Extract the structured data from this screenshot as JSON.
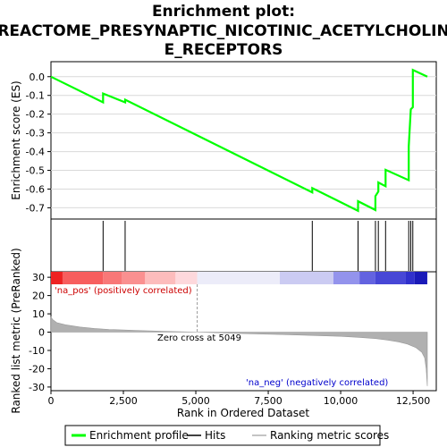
{
  "chart_data": {
    "type": "line",
    "title_lines": [
      "Enrichment plot:",
      "REACTOME_PRESYNAPTIC_NICOTINIC_ACETYLCHOLIN",
      "E_RECEPTORS"
    ],
    "top_panel": {
      "ylabel": "Enrichment score (ES)",
      "ylim": [
        -0.76,
        0.08
      ],
      "yticks": [
        0.0,
        -0.1,
        -0.2,
        -0.3,
        -0.4,
        -0.5,
        -0.6,
        -0.7
      ],
      "ytick_labels": [
        "0.0",
        "-0.1",
        "-0.2",
        "-0.3",
        "-0.4",
        "-0.5",
        "-0.6",
        "-0.7"
      ],
      "series": [
        {
          "name": "Enrichment profile",
          "color": "#00ff00",
          "x": [
            0,
            1800,
            1800,
            2560,
            2560,
            9020,
            9020,
            10600,
            10600,
            11200,
            11200,
            11300,
            11300,
            11550,
            11550,
            12350,
            12350,
            12420,
            12420,
            12490,
            12490,
            12990
          ],
          "y": [
            0.0,
            -0.137,
            -0.09,
            -0.137,
            -0.123,
            -0.618,
            -0.595,
            -0.716,
            -0.665,
            -0.712,
            -0.638,
            -0.613,
            -0.565,
            -0.585,
            -0.497,
            -0.553,
            -0.373,
            -0.174,
            -0.174,
            -0.163,
            0.036,
            0.0
          ]
        }
      ]
    },
    "hits": {
      "name": "Hits",
      "x": [
        1800,
        2560,
        9020,
        10600,
        11200,
        11300,
        11550,
        12350,
        12420,
        12490
      ]
    },
    "bottom_panel": {
      "ylabel": "Ranked list metric (PreRanked)",
      "xlabel": "Rank in Ordered Dataset",
      "ylim": [
        -32,
        33
      ],
      "yticks": [
        30,
        20,
        10,
        0,
        -10,
        -20,
        -30
      ],
      "ytick_labels": [
        "30",
        "20",
        "10",
        "0",
        "-10",
        "-20",
        "-30"
      ],
      "series": [
        {
          "name": "Ranking metric scores",
          "color": "#b0b0b0",
          "x": [
            0,
            50,
            200,
            500,
            1000,
            1500,
            2000,
            3000,
            4000,
            5049,
            6000,
            7000,
            8000,
            9000,
            10000,
            10600,
            11200,
            11600,
            12000,
            12300,
            12600,
            12800,
            12900,
            12950,
            12990
          ],
          "y": [
            8.5,
            7.0,
            5.2,
            4.0,
            2.8,
            2.0,
            1.5,
            0.9,
            0.4,
            0.0,
            -0.5,
            -0.9,
            -1.3,
            -1.8,
            -2.3,
            -2.8,
            -3.5,
            -4.3,
            -5.3,
            -6.5,
            -8.5,
            -11.0,
            -14.0,
            -20.0,
            -29.5
          ]
        }
      ],
      "annotations": {
        "pos_label": "'na_pos' (positively correlated)",
        "neg_label": "'na_neg' (negatively correlated)",
        "zero_cross": "Zero cross at 5049",
        "zero_cross_x": 5049
      }
    },
    "xaxis": {
      "xlim": [
        0,
        13300
      ],
      "xticks": [
        0,
        2500,
        5000,
        7500,
        10000,
        12500
      ],
      "xtick_labels": [
        "0",
        "2,500",
        "5,000",
        "7,500",
        "10,000",
        "12,500"
      ]
    },
    "heatmap_bar": {
      "segments": [
        {
          "x0": 0,
          "x1": 400,
          "color": "#ee2222"
        },
        {
          "x0": 400,
          "x1": 1800,
          "color": "#f75e5e"
        },
        {
          "x0": 1800,
          "x1": 2450,
          "color": "#f87878"
        },
        {
          "x0": 2450,
          "x1": 3250,
          "color": "#fa9090"
        },
        {
          "x0": 3250,
          "x1": 4300,
          "color": "#fcbcbc"
        },
        {
          "x0": 4300,
          "x1": 5049,
          "color": "#fdd8dc"
        },
        {
          "x0": 5049,
          "x1": 7900,
          "color": "#ececf9"
        },
        {
          "x0": 7900,
          "x1": 9750,
          "color": "#cbcbf2"
        },
        {
          "x0": 9750,
          "x1": 10650,
          "color": "#9393ec"
        },
        {
          "x0": 10650,
          "x1": 11200,
          "color": "#6363e0"
        },
        {
          "x0": 11200,
          "x1": 12250,
          "color": "#4747d6"
        },
        {
          "x0": 12250,
          "x1": 12550,
          "color": "#3030cc"
        },
        {
          "x0": 12550,
          "x1": 12990,
          "color": "#1a1ab8"
        }
      ]
    },
    "legend": {
      "position": "bottom",
      "items": [
        {
          "label": "Enrichment profile",
          "color": "#00ff00"
        },
        {
          "label": "Hits",
          "color": "#000000"
        },
        {
          "label": "Ranking metric scores",
          "color": "#b0b0b0"
        }
      ]
    }
  }
}
